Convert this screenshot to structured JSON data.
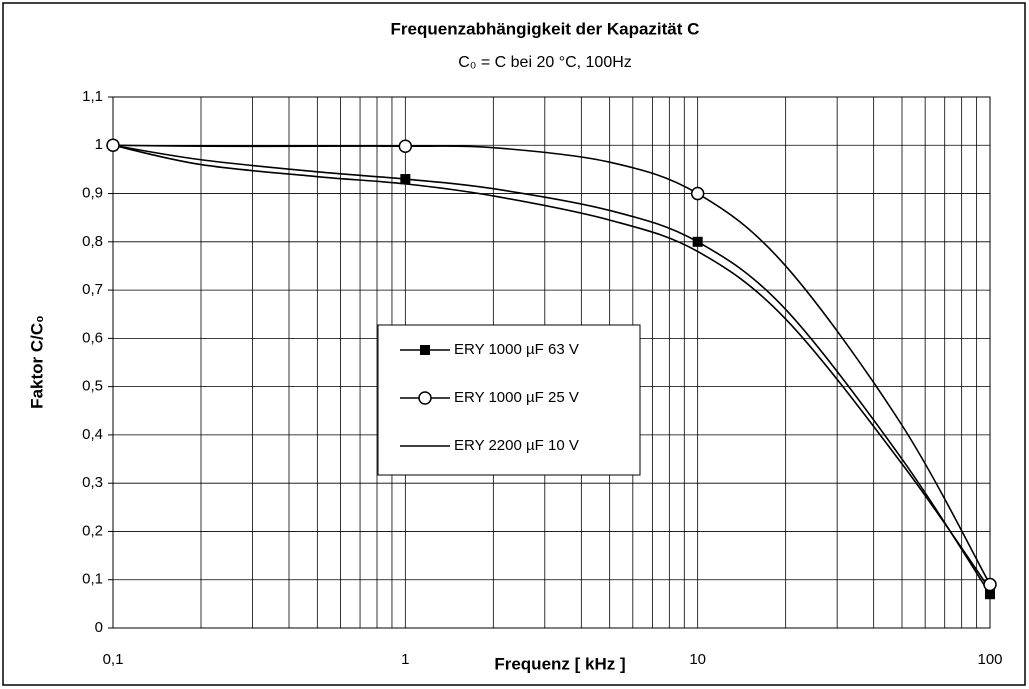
{
  "chart_data": {
    "type": "line",
    "title": "Frequenzabhängigkeit der Kapazität C",
    "subtitle": "C₀ = C bei 20 °C, 100Hz",
    "x_label": "Frequenz [ kHz ]",
    "y_label": "Faktor C/C₀",
    "x": [
      0.1,
      0.2,
      0.5,
      1,
      2,
      5,
      10,
      20,
      50,
      100
    ],
    "series": [
      {
        "name": "ERY 1000 µF 63 V",
        "color": "#000000",
        "marker": "square",
        "values": [
          1,
          0.97,
          0.945,
          0.93,
          0.91,
          0.865,
          0.8,
          0.66,
          0.35,
          0.07
        ]
      },
      {
        "name": "ERY 1000 µF 25 V",
        "color": "#000000",
        "marker": "circle",
        "values": [
          1,
          0.998,
          0.998,
          0.998,
          0.995,
          0.965,
          0.9,
          0.75,
          0.42,
          0.09
        ]
      },
      {
        "name": "ERY 2200 µF 10 V",
        "color": "#000000",
        "marker": "none",
        "values": [
          1,
          0.96,
          0.935,
          0.92,
          0.895,
          0.845,
          0.78,
          0.64,
          0.34,
          0.08
        ]
      }
    ],
    "x_scale": "log",
    "xlim": [
      0.1,
      100
    ],
    "xticks": [
      {
        "value": 0.1,
        "label": "0,1"
      },
      1,
      10,
      100
    ],
    "xticks_minor": [
      0.2,
      0.3,
      0.4,
      0.5,
      0.6,
      0.7,
      0.8,
      0.9,
      2,
      3,
      4,
      5,
      6,
      7,
      8,
      9,
      20,
      30,
      40,
      50,
      60,
      70,
      80,
      90
    ],
    "ylim": [
      0,
      1.1
    ],
    "yticks": [
      0,
      {
        "value": 0.1,
        "label": "0,1"
      },
      {
        "value": 0.2,
        "label": "0,2"
      },
      {
        "value": 0.3,
        "label": "0,3"
      },
      {
        "value": 0.4,
        "label": "0,4"
      },
      {
        "value": 0.5,
        "label": "0,5"
      },
      {
        "value": 0.6,
        "label": "0,6"
      },
      {
        "value": 0.7,
        "label": "0,7"
      },
      {
        "value": 0.8,
        "label": "0,8"
      },
      {
        "value": 0.9,
        "label": "0,9"
      },
      1,
      {
        "value": 1.1,
        "label": "1,1"
      }
    ],
    "grid": true,
    "legend": "center"
  }
}
